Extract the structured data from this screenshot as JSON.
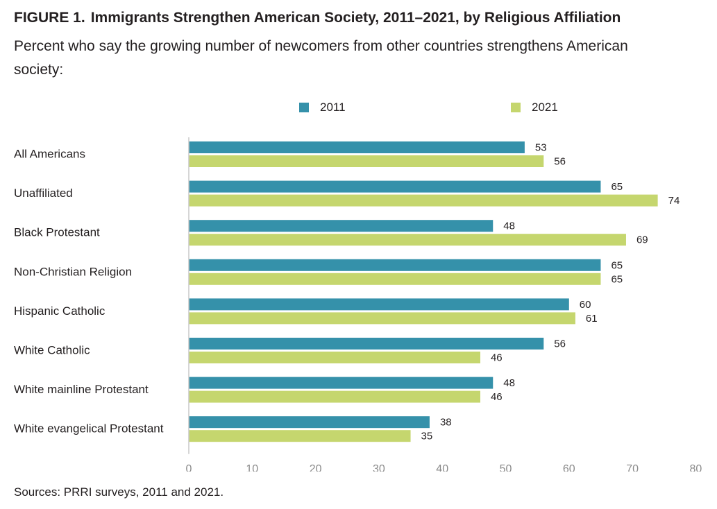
{
  "figure": {
    "label": "FIGURE 1.",
    "title": "Immigrants Strengthen American Society, 2011–2021, by Religious Affiliation",
    "subtitle": "Percent who say the growing number of newcomers from other countries strengthens American society:",
    "source": "Sources: PRRI surveys, 2011 and 2021."
  },
  "chart_data": {
    "type": "bar",
    "orientation": "horizontal",
    "categories": [
      "All Americans",
      "Unaffiliated",
      "Black Protestant",
      "Non-Christian Religion",
      "Hispanic Catholic",
      "White Catholic",
      "White mainline Protestant",
      "White evangelical Protestant"
    ],
    "series": [
      {
        "name": "2011",
        "color": "#3591aa",
        "values": [
          53,
          65,
          48,
          65,
          60,
          56,
          48,
          38
        ]
      },
      {
        "name": "2021",
        "color": "#c5d66e",
        "values": [
          56,
          74,
          69,
          65,
          61,
          46,
          46,
          35
        ]
      }
    ],
    "xlim": [
      0,
      80
    ],
    "xticks": [
      0,
      10,
      20,
      30,
      40,
      50,
      60,
      70,
      80
    ],
    "grid": false,
    "legend_position": "top"
  }
}
